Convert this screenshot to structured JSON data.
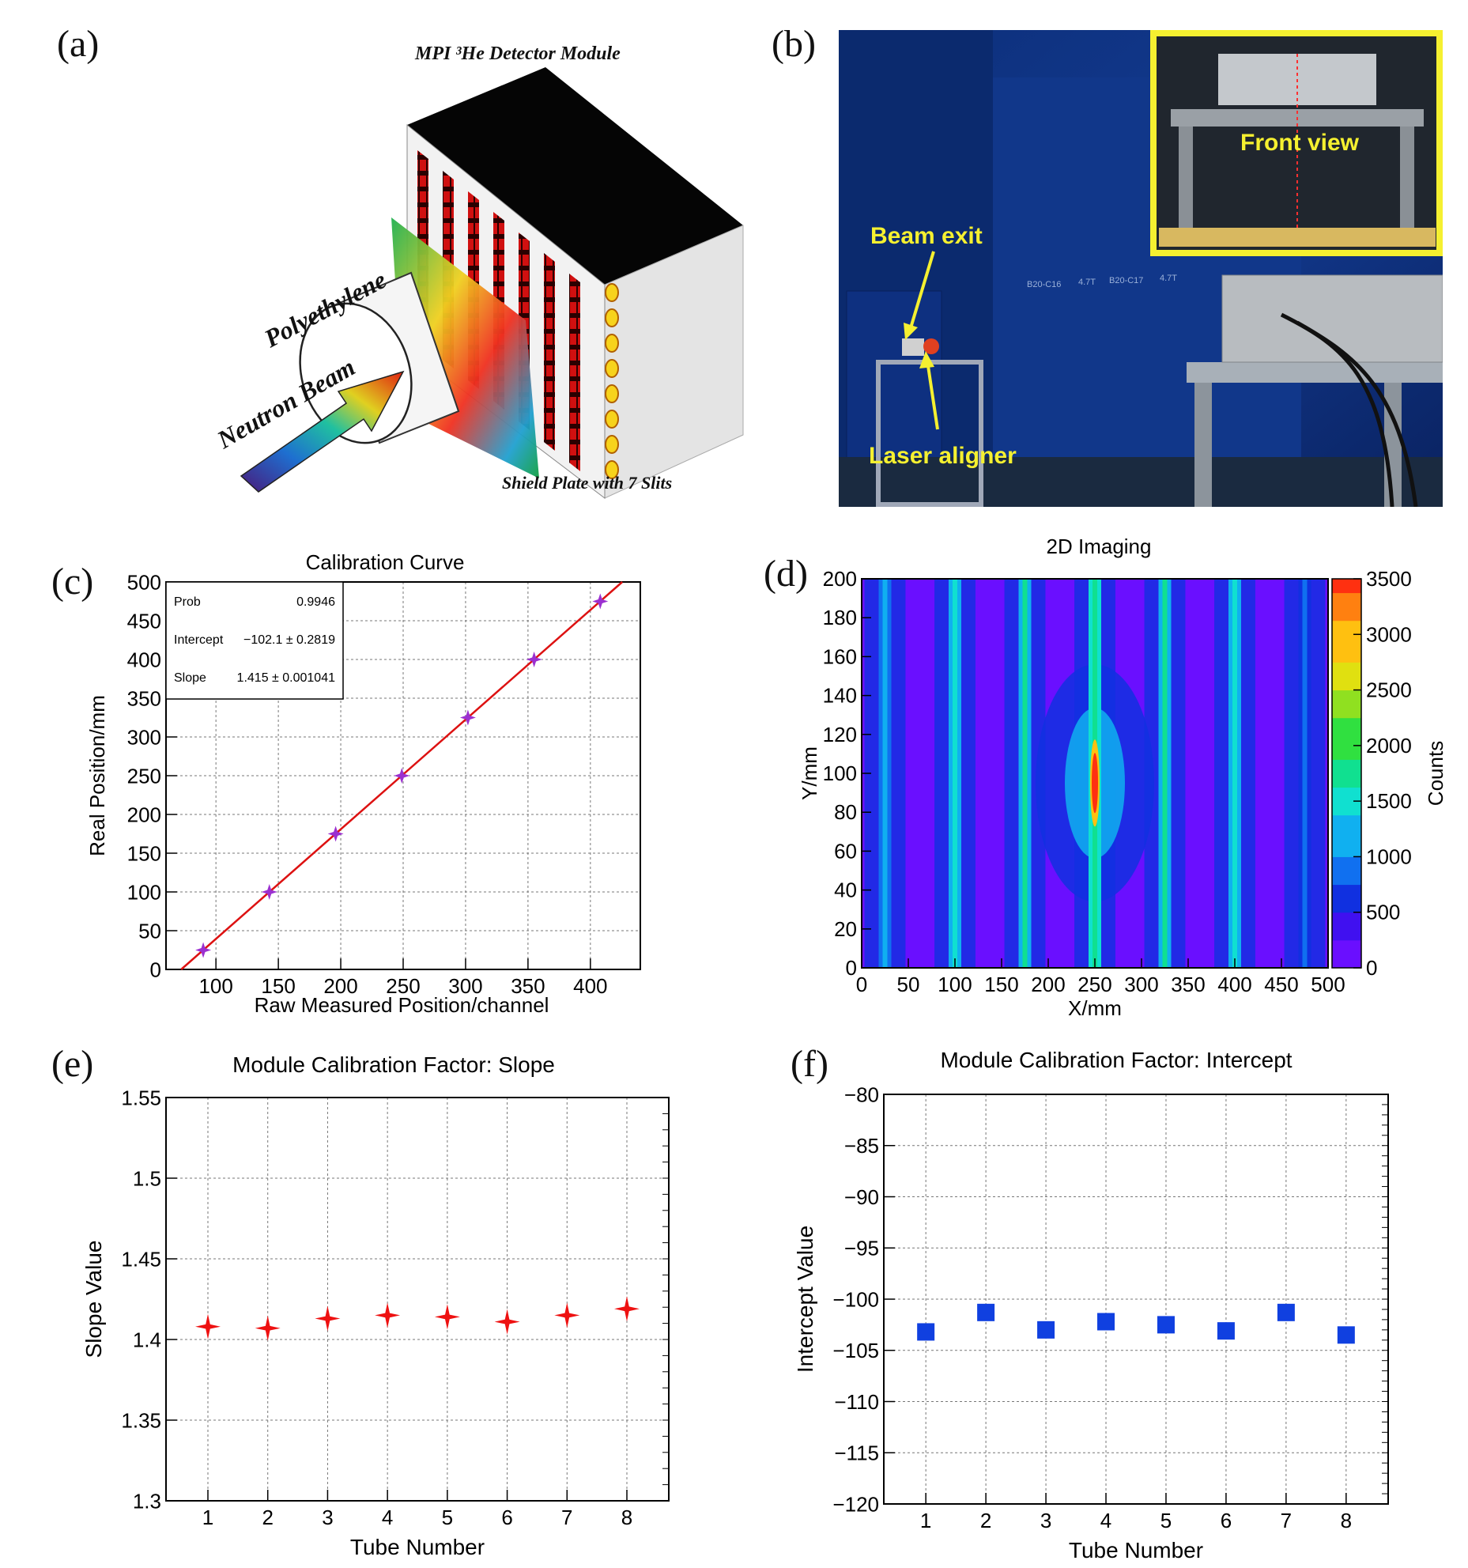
{
  "figure": {
    "panel_letters": [
      "(a)",
      "(b)",
      "(c)",
      "(d)",
      "(e)",
      "(f)"
    ]
  },
  "panel_a": {
    "title": "MPI ³He Detector Module",
    "labels": {
      "polyethylene": "Polyethylene",
      "neutron_beam": "Neutron Beam",
      "shield_plate": "Shield Plate with 7 Slits"
    }
  },
  "panel_b": {
    "labels": {
      "beam_exit": "Beam exit",
      "laser_aligner": "Laser aligner",
      "front_view": "Front view"
    },
    "wall_tags": [
      "B20-C16",
      "4.7T",
      "B20-C17",
      "4.7T"
    ]
  },
  "chart_data": [
    {
      "id": "c",
      "type": "scatter",
      "title": "Calibration Curve",
      "xlabel": "Raw Measured Position/channel",
      "ylabel": "Real Position/mm",
      "xlim": [
        60,
        440
      ],
      "ylim": [
        0,
        500
      ],
      "xticks": [
        100,
        150,
        200,
        250,
        300,
        350,
        400
      ],
      "yticks": [
        0,
        50,
        100,
        150,
        200,
        250,
        300,
        350,
        400,
        450,
        500
      ],
      "grid": true,
      "points": {
        "x": [
          89.8,
          142.8,
          195.9,
          248.9,
          301.9,
          354.9,
          407.9
        ],
        "y": [
          25,
          100,
          175,
          250,
          325,
          400,
          475
        ]
      },
      "fit": {
        "intercept": -102.1,
        "slope": 1.415
      },
      "stats_box": {
        "rows": [
          {
            "label": "Prob",
            "value": "0.9946"
          },
          {
            "label": "Intercept",
            "value": "−102.1 ± 0.2819"
          },
          {
            "label": "Slope",
            "value": "1.415 ± 0.001041"
          }
        ],
        "placement": "top-left"
      }
    },
    {
      "id": "d",
      "type": "heatmap",
      "title": "2D Imaging",
      "xlabel": "X/mm",
      "ylabel": "Y/mm",
      "zlabel": "Counts",
      "xlim": [
        0,
        500
      ],
      "ylim": [
        0,
        200
      ],
      "zlim": [
        0,
        3500
      ],
      "xticks": [
        0,
        50,
        100,
        150,
        200,
        250,
        300,
        350,
        400,
        450,
        500
      ],
      "yticks": [
        0,
        20,
        40,
        60,
        80,
        100,
        120,
        140,
        160,
        180,
        200
      ],
      "zticks": [
        0,
        500,
        1000,
        1500,
        2000,
        2500,
        3000,
        3500
      ],
      "tube_centers_x": [
        25,
        100,
        175,
        250,
        325,
        400,
        475
      ],
      "tube_peak_counts": [
        1100,
        1500,
        1700,
        1900,
        1700,
        1400,
        1000
      ],
      "hotspot": {
        "x": 250,
        "y": 95,
        "peak_counts": 3400
      }
    },
    {
      "id": "e",
      "type": "scatter",
      "title": "Module Calibration Factor: Slope",
      "xlabel": "Tube Number",
      "ylabel": "Slope Value",
      "xlim": [
        0.3,
        8.7
      ],
      "ylim": [
        1.3,
        1.55
      ],
      "xticks": [
        1,
        2,
        3,
        4,
        5,
        6,
        7,
        8
      ],
      "yticks": [
        "1.3",
        "1.35",
        "1.4",
        "1.45",
        "1.5",
        "1.55"
      ],
      "grid": true,
      "x": [
        1,
        2,
        3,
        4,
        5,
        6,
        7,
        8
      ],
      "y": [
        1.408,
        1.407,
        1.413,
        1.415,
        1.414,
        1.411,
        1.415,
        1.419
      ],
      "marker": "red four-point star"
    },
    {
      "id": "f",
      "type": "scatter",
      "title": "Module Calibration Factor: Intercept",
      "xlabel": "Tube Number",
      "ylabel": "Intercept Value",
      "xlim": [
        0.3,
        8.7
      ],
      "ylim": [
        -120,
        -80
      ],
      "xticks": [
        1,
        2,
        3,
        4,
        5,
        6,
        7,
        8
      ],
      "yticks": [
        "−120",
        "−115",
        "−110",
        "−105",
        "−100",
        "−95",
        "−90",
        "−85",
        "−80"
      ],
      "grid": true,
      "x": [
        1,
        2,
        3,
        4,
        5,
        6,
        7,
        8
      ],
      "y": [
        -103.2,
        -101.3,
        -103.0,
        -102.2,
        -102.5,
        -103.1,
        -101.3,
        -103.5
      ],
      "marker": "blue square"
    }
  ],
  "colors": {
    "fit_line": "#dd1111",
    "c_marker": "#9b30d0",
    "e_marker": "#ee1111",
    "f_marker": "#1040e0",
    "label_yellow": "#f5f030"
  }
}
